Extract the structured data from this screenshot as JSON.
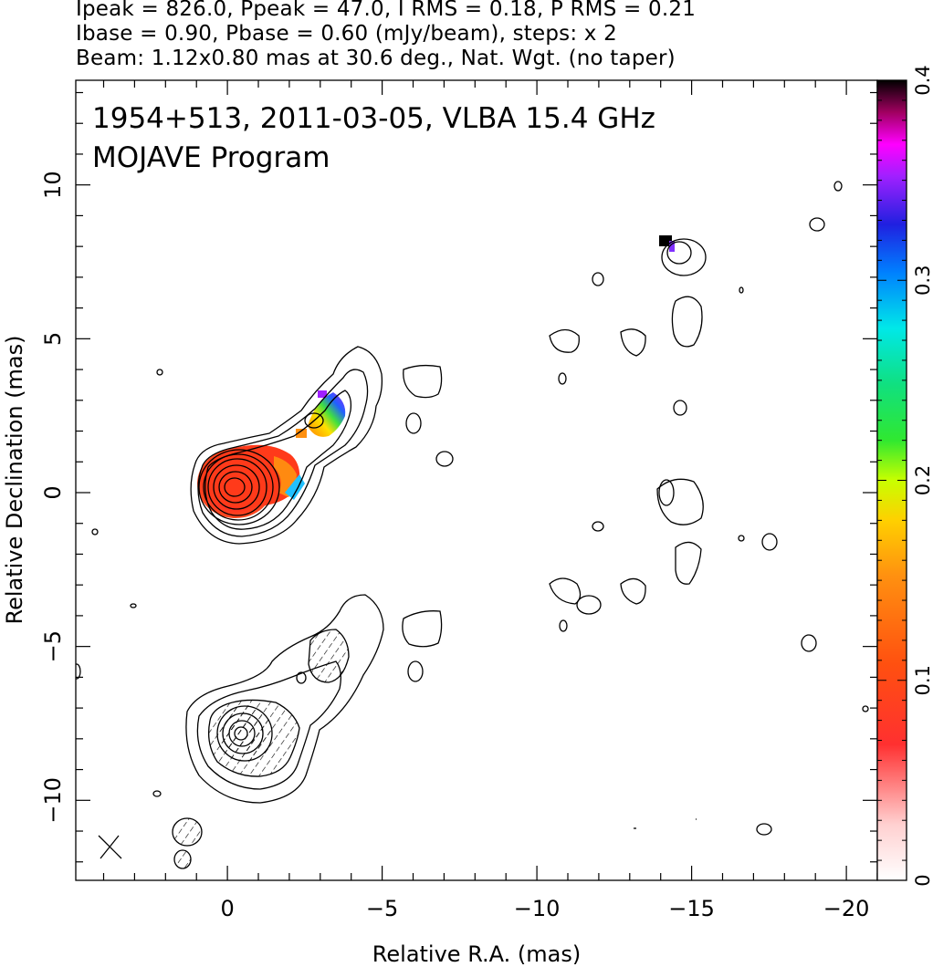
{
  "header": {
    "line1": "Ipeak = 826.0, Ppeak = 47.0, I RMS = 0.18, P RMS = 0.21",
    "line2": "Ibase = 0.90, Pbase = 0.60 (mJy/beam), steps: x 2",
    "line3": "Beam: 1.12x0.80 mas at 30.6 deg., Nat. Wgt. (no taper)"
  },
  "chart_data": {
    "type": "contour",
    "title": "1954+513, 2011-03-05, VLBA 15.4 GHz",
    "subtitle": "MOJAVE Program",
    "xlabel": "Relative R.A. (mas)",
    "ylabel": "Relative Declination (mas)",
    "xlim": [
      4.9,
      -21.0
    ],
    "ylim": [
      -12.6,
      13.4
    ],
    "x_ticks": [
      0,
      -5,
      -10,
      -15,
      -20
    ],
    "x_tick_labels": [
      "0",
      "−5",
      "−10",
      "−15",
      "−20"
    ],
    "y_ticks": [
      10,
      5,
      0,
      -5,
      -10
    ],
    "y_tick_labels": [
      "10",
      "5",
      "0",
      "−5",
      "−10"
    ],
    "colorbar": {
      "min": 0,
      "max": 0.4,
      "ticks": [
        0,
        0.1,
        0.2,
        0.3,
        0.4
      ],
      "tick_labels": [
        "0",
        "0.1",
        "0.2",
        "0.3",
        "0.4"
      ]
    },
    "polarization_map": {
      "peak_ra": -0.3,
      "peak_dec": 0.2,
      "core_fraction": 0.06,
      "jet_fraction_range": [
        0.05,
        0.35
      ]
    },
    "core_contour_levels": 9,
    "total_intensity_core": {
      "ra": -0.3,
      "dec": 0.2
    },
    "polarized_intensity_core": {
      "ra": -0.3,
      "dec": -7.8
    }
  },
  "colors": {
    "axis": "#000000",
    "contour": "#000000",
    "background": "#ffffff"
  }
}
